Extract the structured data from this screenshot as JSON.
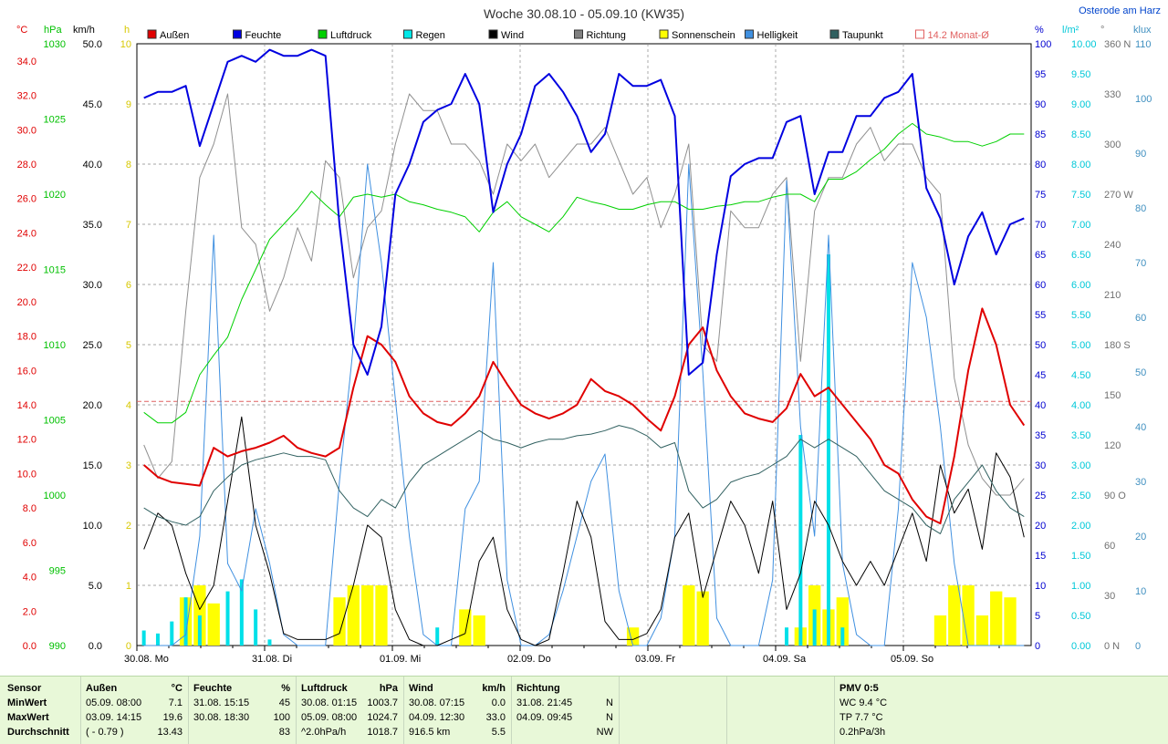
{
  "header": {
    "title": "Woche 30.08.10 - 05.09.10 (KW35)",
    "location": "Osterode am Harz"
  },
  "legend": [
    {
      "label": "Außen",
      "color": "#e00000"
    },
    {
      "label": "Feuchte",
      "color": "#0000e0"
    },
    {
      "label": "Luftdruck",
      "color": "#00d000"
    },
    {
      "label": "Regen",
      "color": "#00e8e8"
    },
    {
      "label": "Wind",
      "color": "#000000"
    },
    {
      "label": "Richtung",
      "color": "#808080"
    },
    {
      "label": "Sonnenschein",
      "color": "#ffff00"
    },
    {
      "label": "Helligkeit",
      "color": "#4090e0"
    },
    {
      "label": "Taupunkt",
      "color": "#306060"
    },
    {
      "label": "14.2 Monat-Ø",
      "color": "#e06060"
    }
  ],
  "axes": {
    "temp": {
      "unit": "°C",
      "color": "#e00000",
      "ticks": [
        "34.0",
        "32.0",
        "30.0",
        "28.0",
        "26.0",
        "24.0",
        "22.0",
        "20.0",
        "18.0",
        "16.0",
        "14.0",
        "12.0",
        "10.0",
        "8.0",
        "6.0",
        "4.0",
        "2.0",
        "0.0"
      ]
    },
    "pressure": {
      "unit": "hPa",
      "color": "#00c000",
      "ticks": [
        "1030",
        "1025",
        "1020",
        "1015",
        "1010",
        "1005",
        "1000",
        "995",
        "990"
      ]
    },
    "wind": {
      "unit": "km/h",
      "color": "#000000",
      "ticks": [
        "50.0",
        "45.0",
        "40.0",
        "35.0",
        "30.0",
        "25.0",
        "20.0",
        "15.0",
        "10.0",
        "5.0",
        "0.0"
      ]
    },
    "sun": {
      "unit": "h",
      "color": "#d8c800",
      "ticks": [
        "10",
        "9",
        "8",
        "7",
        "6",
        "5",
        "4",
        "3",
        "2",
        "1",
        "0"
      ]
    },
    "humidity": {
      "unit": "%",
      "color": "#0000d0",
      "ticks": [
        "100",
        "95",
        "90",
        "85",
        "80",
        "75",
        "70",
        "65",
        "60",
        "55",
        "50",
        "45",
        "40",
        "35",
        "30",
        "25",
        "20",
        "15",
        "10",
        "5",
        "0"
      ]
    },
    "rain": {
      "unit": "l/m²",
      "color": "#00c8d8",
      "ticks": [
        "10.00",
        "9.50",
        "9.00",
        "8.50",
        "8.00",
        "7.50",
        "7.00",
        "6.50",
        "6.00",
        "5.50",
        "5.00",
        "4.50",
        "4.00",
        "3.50",
        "3.00",
        "2.50",
        "2.00",
        "1.50",
        "1.00",
        "0.50",
        "0.00"
      ]
    },
    "direction": {
      "unit": "°",
      "color": "#707070",
      "ticks": [
        "360 N",
        "330",
        "300",
        "270 W",
        "240",
        "210",
        "180 S",
        "150",
        "120",
        "90 O",
        "60",
        "30",
        "0 N"
      ]
    },
    "light": {
      "unit": "klux",
      "color": "#4090c0",
      "ticks": [
        "110",
        "100",
        "90",
        "80",
        "70",
        "60",
        "50",
        "40",
        "30",
        "20",
        "10",
        "0"
      ]
    },
    "days": [
      "30.08. Mo",
      "31.08. Di",
      "01.09. Mi",
      "02.09. Do",
      "03.09. Fr",
      "04.09. Sa",
      "05.09. So"
    ]
  },
  "chart_data": {
    "type": "line",
    "title": "Woche 30.08.10 - 05.09.10 (KW35)",
    "x_start": "30.08.10 00:00",
    "x_step_hours": 3,
    "monthly_avg_temp": 14.2,
    "series": [
      {
        "name": "Außen",
        "unit": "°C",
        "values": [
          10.5,
          9.8,
          9.5,
          9.4,
          9.3,
          11.5,
          11.0,
          11.3,
          11.5,
          11.8,
          12.2,
          11.5,
          11.2,
          11.0,
          11.5,
          15.0,
          18.0,
          17.5,
          16.5,
          14.5,
          13.5,
          13.0,
          12.8,
          13.5,
          14.5,
          16.5,
          15.2,
          14.0,
          13.5,
          13.2,
          13.5,
          14.0,
          15.5,
          14.8,
          14.5,
          14.0,
          13.2,
          12.5,
          14.5,
          17.5,
          18.5,
          16.0,
          14.5,
          13.5,
          13.2,
          13.0,
          13.8,
          15.8,
          14.5,
          15.0,
          14.0,
          13.0,
          12.0,
          10.5,
          10.0,
          8.5,
          7.5,
          7.1,
          11.0,
          16.0,
          19.6,
          17.5,
          14.0,
          12.8
        ]
      },
      {
        "name": "Feuchte",
        "unit": "%",
        "values": [
          91,
          92,
          92,
          93,
          83,
          90,
          97,
          98,
          97,
          99,
          98,
          98,
          99,
          98,
          70,
          50,
          45,
          53,
          75,
          80,
          87,
          89,
          90,
          95,
          90,
          72,
          80,
          85,
          93,
          95,
          92,
          88,
          82,
          85,
          95,
          93,
          93,
          94,
          88,
          45,
          47,
          65,
          78,
          80,
          81,
          81,
          87,
          88,
          75,
          82,
          82,
          88,
          88,
          91,
          92,
          95,
          76,
          71,
          60,
          68,
          72,
          65,
          70,
          71
        ]
      },
      {
        "name": "Luftdruck",
        "unit": "hPa",
        "values": [
          1005.5,
          1004.8,
          1004.8,
          1005.5,
          1008,
          1009.3,
          1010.5,
          1013.0,
          1015.0,
          1017.0,
          1018.0,
          1019.0,
          1020.2,
          1019.3,
          1018.5,
          1019.8,
          1020.0,
          1019.8,
          1020.0,
          1019.5,
          1019.3,
          1019.0,
          1018.8,
          1018.5,
          1017.5,
          1018.8,
          1019.5,
          1018.5,
          1018.0,
          1017.5,
          1018.5,
          1019.8,
          1019.5,
          1019.3,
          1019.0,
          1019.0,
          1019.3,
          1019.5,
          1019.5,
          1019.0,
          1019.0,
          1019.2,
          1019.3,
          1019.5,
          1019.5,
          1019.8,
          1020.0,
          1020.0,
          1019.5,
          1021.0,
          1021.0,
          1021.5,
          1022.3,
          1023.0,
          1024.0,
          1024.7,
          1024.0,
          1023.8,
          1023.5,
          1023.5,
          1023.2,
          1023.5,
          1024.0,
          1024.0
        ]
      },
      {
        "name": "Wind",
        "unit": "km/h",
        "values": [
          8,
          11,
          10,
          6,
          3,
          5,
          12,
          19,
          10,
          6,
          1,
          0.5,
          0.5,
          0.5,
          1,
          5,
          10,
          9,
          3,
          0.5,
          0,
          0,
          0.5,
          1,
          7,
          9,
          3,
          0.5,
          0,
          0.5,
          6,
          12,
          9,
          2,
          0.5,
          0.5,
          1,
          3,
          9,
          11,
          4,
          8,
          12,
          10,
          6,
          12,
          3,
          6,
          12,
          10,
          7,
          5,
          7,
          5,
          8,
          11,
          7,
          15,
          11,
          13,
          8,
          16,
          14,
          9
        ]
      },
      {
        "name": "Richtung",
        "unit": "°",
        "values": [
          120,
          100,
          110,
          200,
          280,
          300,
          330,
          250,
          240,
          200,
          220,
          250,
          230,
          290,
          280,
          220,
          250,
          260,
          300,
          330,
          320,
          320,
          300,
          300,
          290,
          270,
          300,
          290,
          300,
          280,
          290,
          300,
          300,
          310,
          290,
          270,
          280,
          250,
          270,
          300,
          180,
          170,
          260,
          250,
          250,
          270,
          280,
          170,
          260,
          280,
          280,
          300,
          310,
          290,
          300,
          300,
          280,
          270,
          160,
          120,
          100,
          90,
          90,
          100
        ]
      },
      {
        "name": "Taupunkt",
        "unit": "°C",
        "values": [
          8.0,
          7.5,
          7.2,
          7.0,
          7.5,
          9.0,
          9.8,
          10.5,
          10.8,
          11.0,
          11.2,
          11.0,
          11.0,
          10.8,
          9.0,
          8.0,
          7.5,
          8.5,
          8.0,
          9.5,
          10.5,
          11.0,
          11.5,
          12.0,
          12.5,
          12.0,
          11.8,
          11.5,
          11.8,
          12.0,
          12.0,
          12.2,
          12.3,
          12.5,
          12.8,
          12.6,
          12.2,
          11.5,
          11.8,
          9.0,
          8.0,
          8.5,
          9.5,
          9.8,
          10.0,
          10.5,
          11.0,
          12.0,
          11.5,
          12.0,
          11.5,
          11.0,
          10.0,
          9.0,
          8.5,
          8.0,
          7.0,
          6.5,
          8.5,
          9.5,
          10.5,
          9.0,
          8.0,
          7.5
        ]
      },
      {
        "name": "Helligkeit",
        "unit": "klux",
        "values": [
          0,
          0,
          0,
          2,
          20,
          75,
          15,
          10,
          25,
          15,
          2,
          0,
          0,
          0,
          30,
          55,
          88,
          70,
          45,
          20,
          2,
          0,
          0,
          25,
          30,
          70,
          12,
          0,
          0,
          2,
          10,
          20,
          30,
          35,
          10,
          0,
          0,
          5,
          20,
          88,
          50,
          5,
          0,
          0,
          0,
          12,
          85,
          40,
          20,
          75,
          15,
          2,
          0,
          0,
          25,
          70,
          60,
          40,
          15,
          0,
          0,
          0,
          0,
          0
        ]
      },
      {
        "name": "Regen",
        "unit": "l/m²",
        "values": [
          0.25,
          0.2,
          0.4,
          0.8,
          0.5,
          0.0,
          0.9,
          1.1,
          0.6,
          0.1,
          0.0,
          0.0,
          0.0,
          0.0,
          0.0,
          0.0,
          0.0,
          0.0,
          0.0,
          0.0,
          0.0,
          0.3,
          0.0,
          0.0,
          0.0,
          0.0,
          0.0,
          0.0,
          0.0,
          0.0,
          0.0,
          0.0,
          0.0,
          0.0,
          0.0,
          0.0,
          0.0,
          0.0,
          0.0,
          0.0,
          0.0,
          0.0,
          0.0,
          0.0,
          0.0,
          0.0,
          0.3,
          3.5,
          0.6,
          6.5,
          0.3,
          0.0,
          0.0,
          0.0,
          0.0,
          0.0,
          0.0,
          0.0,
          0.0,
          0.0,
          0.0,
          0.0,
          0.0,
          0.0
        ]
      },
      {
        "name": "Sonnenschein",
        "unit": "h",
        "values": [
          0,
          0,
          0,
          0.8,
          1.0,
          0.7,
          0,
          0,
          0,
          0,
          0,
          0,
          0,
          0,
          0.8,
          1.0,
          1.0,
          1.0,
          0,
          0,
          0,
          0,
          0,
          0.6,
          0.5,
          0,
          0,
          0,
          0,
          0,
          0,
          0,
          0,
          0,
          0,
          0.3,
          0,
          0,
          0,
          1.0,
          0.9,
          0,
          0,
          0,
          0,
          0,
          0,
          0.3,
          1.0,
          0.6,
          0.8,
          0,
          0,
          0,
          0,
          0,
          0,
          0.5,
          1.0,
          1.0,
          0.5,
          0.9,
          0.8,
          0
        ]
      }
    ]
  },
  "stats": {
    "row_labels": [
      "Sensor",
      "MinWert",
      "MaxWert",
      "Durchschnitt"
    ],
    "aussen": {
      "title": "Außen",
      "unit": "°C",
      "min_time": "05.09.  08:00",
      "min": "7.1",
      "max_time": "03.09.  14:15",
      "max": "19.6",
      "avg_note": "( - 0.79 )",
      "avg": "13.43"
    },
    "feuchte": {
      "title": "Feuchte",
      "unit": "%",
      "min_time": "31.08.  15:15",
      "min": "45",
      "max_time": "30.08.  18:30",
      "max": "100",
      "avg": "83"
    },
    "luftdruck": {
      "title": "Luftdruck",
      "unit": "hPa",
      "min_time": "30.08.  01:15",
      "min": "1003.7",
      "max_time": "05.09.  08:00",
      "max": "1024.7",
      "avg_note": "^2.0hPa/h",
      "avg": "1018.7"
    },
    "wind": {
      "title": "Wind",
      "unit": "km/h",
      "min_time": "30.08.  07:15",
      "min": "0.0",
      "max_time": "04.09.  12:30",
      "max": "33.0",
      "avg_note": "916.5 km",
      "avg": "5.5"
    },
    "richtung": {
      "title": "Richtung",
      "min_time": "31.08.  21:45",
      "min": "N",
      "max_time": "04.09.  09:45",
      "max": "N",
      "avg": "NW"
    },
    "pmv": {
      "title": "PMV 0:5",
      "line1": "WC 9.4 °C",
      "line2": "TP 7.7 °C",
      "line3": "0.2hPa/3h"
    }
  }
}
